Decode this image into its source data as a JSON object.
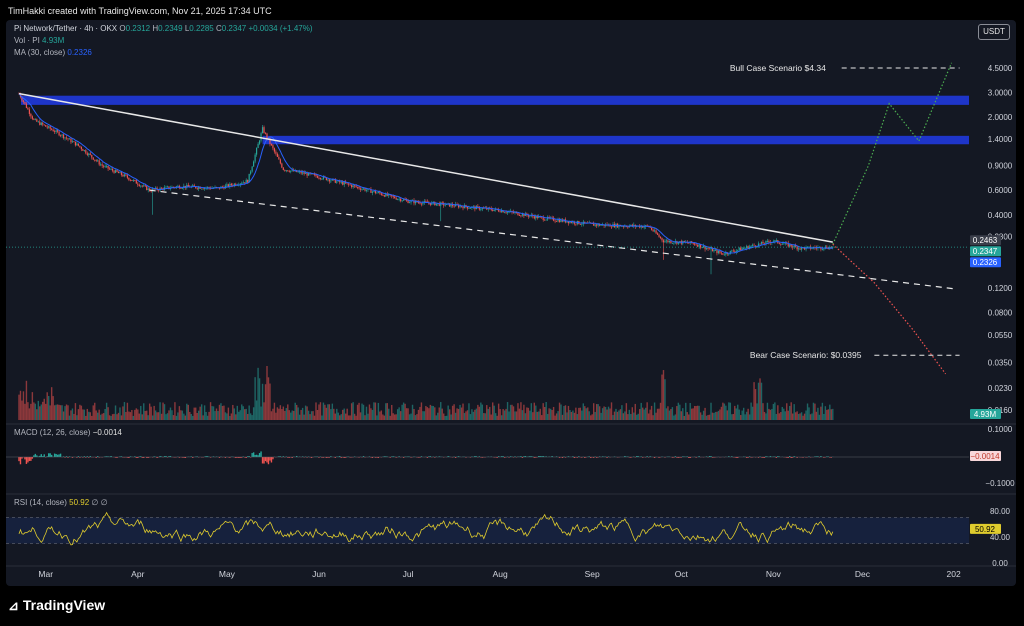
{
  "header": {
    "credit": "TimHakki created with TradingView.com, Nov 21, 2025 17:34 UTC"
  },
  "legend": {
    "symbol": "Pi Network/Tether · 4h · OKX",
    "ohlc": {
      "o_label": "O",
      "o": "0.2312",
      "h_label": "H",
      "h": "0.2349",
      "l_label": "L",
      "l": "0.2285",
      "c_label": "C",
      "c": "0.2347",
      "change": "+0.0034 (+1.47%)"
    },
    "vol_label": "Vol · PI",
    "vol_value": "4.93M",
    "ma_label": "MA (30, close)",
    "ma_value": "0.2326"
  },
  "currency_button": "USDT",
  "brand": "TradingView",
  "colors": {
    "background": "#141823",
    "up": "#26a69a",
    "down": "#ef5350",
    "ma": "#2962ff",
    "zone": "#1e35c9",
    "rsi": "#e0cc2e",
    "bull_path": "#4caf50",
    "bear_path": "#ef5350"
  },
  "chart_data": [
    {
      "type": "candlestick",
      "title": "Pi Network/Tether · 4h · OKX",
      "y_scale": "log",
      "y_ticks": [
        "4.5000",
        "3.0000",
        "2.0000",
        "1.4000",
        "0.9000",
        "0.6000",
        "0.4000",
        "0.2800",
        "0.1200",
        "0.0800",
        "0.0550",
        "0.0350",
        "0.0230",
        "0.0160"
      ],
      "x_ticks": [
        "Mar",
        "Apr",
        "May",
        "Jun",
        "Jul",
        "Aug",
        "Sep",
        "Oct",
        "Nov",
        "Dec",
        "202"
      ],
      "price_labels": [
        {
          "value": "0.2463",
          "color": "#3a3e4a"
        },
        {
          "value": "0.2347",
          "color": "#26a69a"
        },
        {
          "value": "0.2326",
          "color": "#2962ff"
        }
      ],
      "close_path_approx": [
        {
          "x": "Feb 20",
          "y": 2.95
        },
        {
          "x": "Feb 25",
          "y": 1.9
        },
        {
          "x": "Mar 5",
          "y": 1.55
        },
        {
          "x": "Mar 12",
          "y": 1.25
        },
        {
          "x": "Mar 20",
          "y": 0.9
        },
        {
          "x": "Mar 28",
          "y": 0.75
        },
        {
          "x": "Apr 5",
          "y": 0.6
        },
        {
          "x": "Apr 15",
          "y": 0.64
        },
        {
          "x": "Apr 28",
          "y": 0.62
        },
        {
          "x": "May 8",
          "y": 0.7
        },
        {
          "x": "May 13",
          "y": 1.65
        },
        {
          "x": "May 20",
          "y": 0.85
        },
        {
          "x": "Jun 1",
          "y": 0.75
        },
        {
          "x": "Jun 15",
          "y": 0.62
        },
        {
          "x": "Jul 1",
          "y": 0.5
        },
        {
          "x": "Jul 15",
          "y": 0.47
        },
        {
          "x": "Aug 1",
          "y": 0.43
        },
        {
          "x": "Aug 15",
          "y": 0.38
        },
        {
          "x": "Sep 1",
          "y": 0.34
        },
        {
          "x": "Sep 20",
          "y": 0.33
        },
        {
          "x": "Sep 25",
          "y": 0.26
        },
        {
          "x": "Oct 5",
          "y": 0.25
        },
        {
          "x": "Oct 15",
          "y": 0.21
        },
        {
          "x": "Oct 25",
          "y": 0.24
        },
        {
          "x": "Nov 1",
          "y": 0.26
        },
        {
          "x": "Nov 10",
          "y": 0.23
        },
        {
          "x": "Nov 21",
          "y": 0.2347
        }
      ],
      "resistance_zones": [
        {
          "from": 2.45,
          "to": 2.85
        },
        {
          "from": 1.28,
          "to": 1.47
        }
      ],
      "annotations": [
        {
          "text": "Bull Case Scenario $4.34",
          "level": 4.5
        },
        {
          "text": "Bear Case Scenario: $0.0395",
          "level": 0.0395
        }
      ]
    },
    {
      "type": "bar",
      "title": "Vol · PI",
      "last_value": "4.93M"
    },
    {
      "type": "histogram",
      "title": "MACD (12, 26, close)",
      "last_value": "−0.0014",
      "y_ticks": [
        "0.1000",
        "−0.1000"
      ]
    },
    {
      "type": "line",
      "title": "RSI (14, close)",
      "last_value": "50.92",
      "extra": "∅ ∅",
      "y_ticks": [
        "80.00",
        "40.00",
        "0.00"
      ],
      "bands": [
        70,
        30
      ]
    }
  ]
}
